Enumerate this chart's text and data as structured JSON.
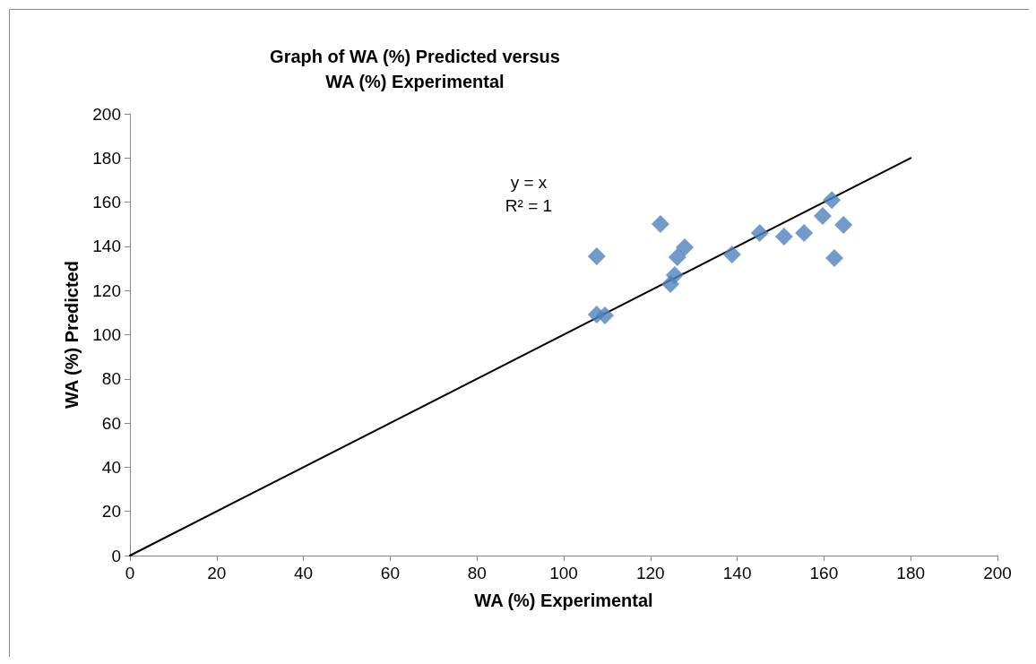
{
  "chart_data": {
    "type": "scatter",
    "title": "Graph of WA (%) Predicted versus\nWA (%) Experimental",
    "xlabel": "WA (%) Experimental",
    "ylabel": "WA (%) Predicted",
    "xlim": [
      0,
      200
    ],
    "xticks": [
      0,
      20,
      40,
      60,
      80,
      100,
      120,
      140,
      160,
      180,
      200
    ],
    "ylim": [
      0,
      200
    ],
    "yticks": [
      0,
      20,
      40,
      60,
      80,
      100,
      120,
      140,
      160,
      180,
      200
    ],
    "grid": false,
    "marker": "diamond",
    "series": [
      {
        "color": "#4f81bd",
        "x": [
          107.6,
          107.6,
          109.5,
          122.3,
          124.6,
          125.6,
          126.2,
          127.9,
          138.8,
          145.2,
          150.8,
          155.4,
          159.7,
          161.8,
          164.5,
          162.4
        ],
        "values": [
          135.5,
          109.1,
          108.7,
          150.1,
          122.9,
          127,
          135.1,
          139.6,
          136.3,
          146,
          144.4,
          146,
          153.8,
          161,
          149.7,
          134.7
        ]
      },
      {
        "type": "line",
        "color": "#000000",
        "marker": "none",
        "line_style": "solid",
        "x": [
          0,
          180
        ],
        "values": [
          0,
          180
        ]
      }
    ],
    "annotations": [
      "y = x\nR² = 1"
    ]
  }
}
